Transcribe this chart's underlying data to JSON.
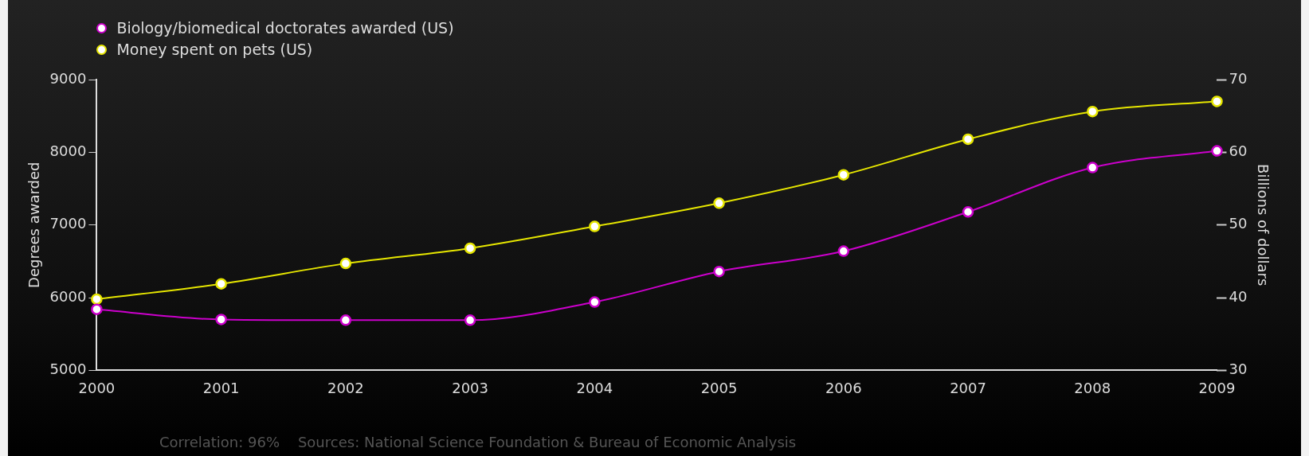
{
  "chart_data": {
    "type": "line",
    "categories": [
      "2000",
      "2001",
      "2002",
      "2003",
      "2004",
      "2005",
      "2006",
      "2007",
      "2008",
      "2009"
    ],
    "series": [
      {
        "name": "Biology/biomedical doctorates awarded (US)",
        "color": "#cc00cc",
        "values": [
          5840,
          5700,
          5690,
          5690,
          5940,
          6360,
          6640,
          7180,
          7790,
          8020
        ]
      },
      {
        "name": "Money spent on pets (US)",
        "color": "#e6e600",
        "axis": "y2",
        "values": [
          39.8,
          41.9,
          44.7,
          46.8,
          49.8,
          53.0,
          56.9,
          61.8,
          65.6,
          67.0
        ]
      }
    ],
    "ylabel": "Degrees awarded",
    "y2label": "Billions of dollars",
    "ylim": [
      5000,
      9000
    ],
    "yticks": [
      5000,
      6000,
      7000,
      8000,
      9000
    ],
    "y2lim": [
      30,
      70
    ],
    "y2ticks": [
      30,
      40,
      50,
      60,
      70
    ],
    "annotations": [
      "Correlation: 96%    Sources: National Science Foundation & Bureau of Economic Analysis"
    ],
    "legend": "top left",
    "marker": "circle",
    "line_style": "solid",
    "grid": false
  }
}
